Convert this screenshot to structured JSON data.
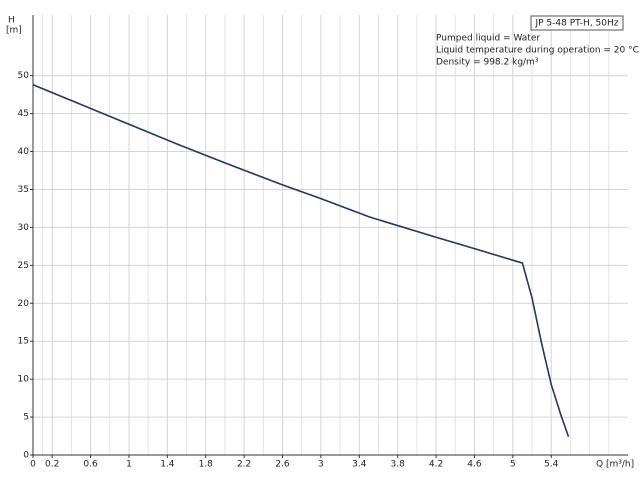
{
  "chart_data": {
    "type": "line",
    "title": "JP 5-48 PT-H, 50Hz",
    "annotations": [
      "Pumped liquid = Water",
      "Liquid temperature during operation = 20 °C",
      "Density = 998.2 kg/m³"
    ],
    "y_label": [
      "H",
      "[m]"
    ],
    "x_label": "Q [m³/h]",
    "x": [
      0,
      0.5,
      1.0,
      1.5,
      2.0,
      2.6,
      3.0,
      3.5,
      4.2,
      4.6,
      5.1,
      5.2,
      5.3,
      5.4,
      5.5,
      5.58
    ],
    "series": [
      {
        "name": "H",
        "color": "#1f3a5f",
        "values": [
          48.8,
          46.2,
          43.6,
          41.0,
          38.5,
          35.6,
          33.8,
          31.4,
          28.7,
          27.2,
          25.3,
          20.7,
          14.7,
          9.3,
          5.3,
          2.4
        ]
      }
    ],
    "xlim": [
      0,
      6.2
    ],
    "xticks": [
      0,
      0.2,
      0.6,
      1.0,
      1.4,
      1.8,
      2.2,
      2.6,
      3.0,
      3.4,
      3.8,
      4.2,
      4.6,
      5.0,
      5.4
    ],
    "ylim": [
      0,
      58
    ],
    "yticks": [
      0,
      5,
      10,
      15,
      20,
      25,
      30,
      35,
      40,
      45,
      50
    ],
    "grid": true
  }
}
